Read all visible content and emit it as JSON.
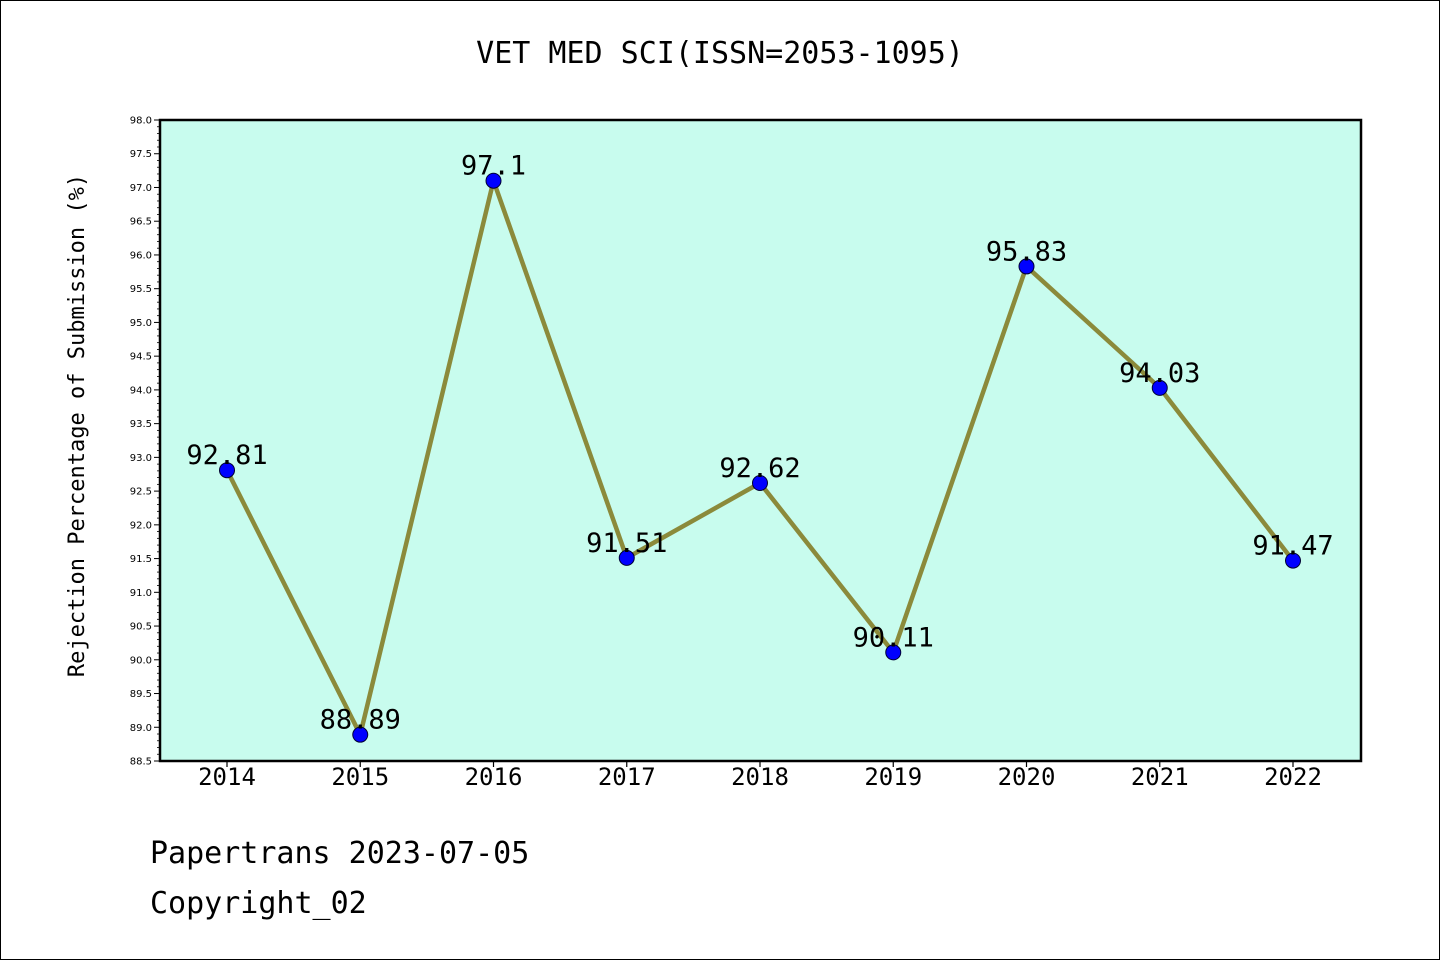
{
  "chart_data": {
    "type": "line",
    "title": "VET MED SCI(ISSN=2053-1095)",
    "xlabel": "",
    "ylabel": "Rejection Percentage of Submission (%)",
    "categories": [
      "2014",
      "2015",
      "2016",
      "2017",
      "2018",
      "2019",
      "2020",
      "2021",
      "2022"
    ],
    "series": [
      {
        "values": [
          92.81,
          88.89,
          97.1,
          91.51,
          92.62,
          90.11,
          95.83,
          94.03,
          91.47
        ]
      }
    ],
    "data_labels": [
      "92.81",
      "88.89",
      "97.1",
      "91.51",
      "92.62",
      "90.11",
      "95.83",
      "94.03",
      "91.47"
    ],
    "ylim": [
      88.5,
      98.0
    ],
    "ytick_step": 0.5,
    "grid": false,
    "legend": "none",
    "colors": {
      "plot_background": "#c8fcee",
      "line": "#8b8a3b",
      "marker": "#0000ff",
      "axis": "#000000"
    }
  },
  "footer": {
    "line1": "Papertrans 2023-07-05",
    "line2": "Copyright_02"
  }
}
